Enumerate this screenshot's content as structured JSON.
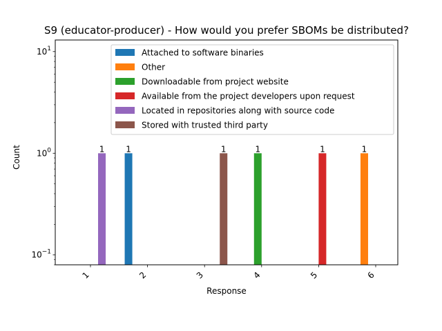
{
  "chart_data": {
    "type": "bar",
    "title": "S9 (educator-producer) - How would you prefer SBOMs be distributed?",
    "xlabel": "Response",
    "ylabel": "Count",
    "yscale": "log",
    "ylim": [
      0.08,
      13
    ],
    "categories": [
      "1",
      "2",
      "3",
      "4",
      "5",
      "6"
    ],
    "y_ticks": [
      {
        "value": 0.1,
        "base": "10",
        "exp": "−1"
      },
      {
        "value": 1,
        "base": "10",
        "exp": "0"
      },
      {
        "value": 10,
        "base": "10",
        "exp": "1"
      }
    ],
    "series": [
      {
        "name": "Attached to software binaries",
        "color": "#1f77b4",
        "values": [
          null,
          1,
          null,
          null,
          null,
          null
        ]
      },
      {
        "name": "Other",
        "color": "#ff7f0e",
        "values": [
          null,
          null,
          null,
          null,
          null,
          1
        ]
      },
      {
        "name": "Downloadable from project website",
        "color": "#2ca02c",
        "values": [
          null,
          null,
          null,
          1,
          null,
          null
        ]
      },
      {
        "name": "Available from the project developers upon request",
        "color": "#d62728",
        "values": [
          null,
          null,
          null,
          null,
          1,
          null
        ]
      },
      {
        "name": "Located in repositories along with source code",
        "color": "#9467bd",
        "values": [
          1,
          null,
          null,
          null,
          null,
          null
        ]
      },
      {
        "name": "Stored with trusted third party",
        "color": "#8c564b",
        "values": [
          null,
          null,
          1,
          null,
          null,
          null
        ]
      }
    ],
    "bar_labels": [
      "1",
      "1",
      "1",
      "1",
      "1",
      "1"
    ],
    "legend_position": "top-right",
    "grid": false
  }
}
